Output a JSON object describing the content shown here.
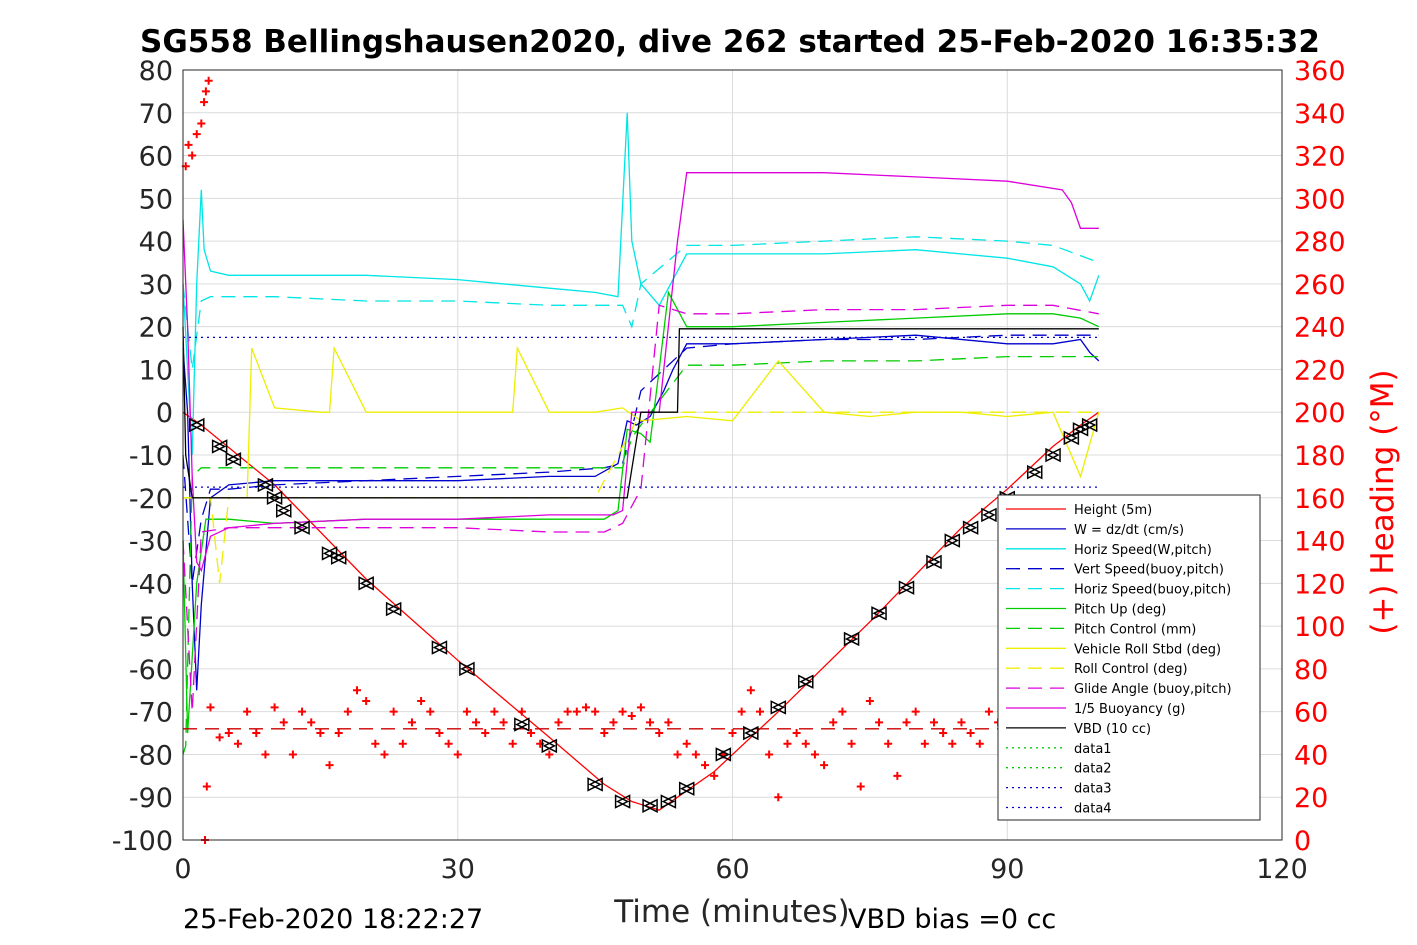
{
  "chart_data": {
    "type": "line",
    "title": "SG558 Bellingshausen2020, dive 262 started 25-Feb-2020 16:35:32",
    "xlabel": "Time (minutes)",
    "ylabel_right": "(+) Heading (°M)",
    "xlim": [
      0,
      120
    ],
    "ylim_left": [
      -100,
      80
    ],
    "ylim_right": [
      0,
      360
    ],
    "x_ticks": [
      "0",
      "30",
      "60",
      "90",
      "120"
    ],
    "y_ticks_left": [
      "80",
      "70",
      "60",
      "50",
      "40",
      "30",
      "20",
      "10",
      "0",
      "-10",
      "-20",
      "-30",
      "-40",
      "-50",
      "-60",
      "-70",
      "-80",
      "-90",
      "-100"
    ],
    "y_ticks_right": [
      "360",
      "340",
      "320",
      "300",
      "280",
      "260",
      "240",
      "220",
      "200",
      "180",
      "160",
      "140",
      "120",
      "100",
      "80",
      "60",
      "40",
      "20",
      "0"
    ],
    "grid": true,
    "legend_position": "lower-right",
    "footer_left": "25-Feb-2020 18:22:27",
    "footer_right": "VBD bias =0 cc",
    "legend": [
      {
        "label": "Height (5m)",
        "color": "#ff0000",
        "dash": "solid"
      },
      {
        "label": "W = dz/dt (cm/s)",
        "color": "#0000cc",
        "dash": "solid"
      },
      {
        "label": "Horiz Speed(W,pitch)",
        "color": "#00e5e5",
        "dash": "solid"
      },
      {
        "label": "Vert Speed(buoy,pitch)",
        "color": "#0000cc",
        "dash": "dashed"
      },
      {
        "label": "Horiz Speed(buoy,pitch)",
        "color": "#00e5e5",
        "dash": "dashed"
      },
      {
        "label": "Pitch Up (deg)",
        "color": "#00cc00",
        "dash": "solid"
      },
      {
        "label": "Pitch Control (mm)",
        "color": "#00cc00",
        "dash": "dashed"
      },
      {
        "label": "Vehicle Roll Stbd (deg)",
        "color": "#eeee00",
        "dash": "solid"
      },
      {
        "label": "Roll Control (deg)",
        "color": "#eeee00",
        "dash": "dashed"
      },
      {
        "label": "Glide Angle (buoy,pitch)",
        "color": "#dd00dd",
        "dash": "dashed"
      },
      {
        "label": "1/5 Buoyancy (g)",
        "color": "#dd00dd",
        "dash": "solid"
      },
      {
        "label": "VBD (10 cc)",
        "color": "#000000",
        "dash": "solid"
      },
      {
        "label": "data1",
        "color": "#00cc00",
        "dash": "dotted"
      },
      {
        "label": "data2",
        "color": "#00cc00",
        "dash": "dotted"
      },
      {
        "label": "data3",
        "color": "#0000cc",
        "dash": "dotted"
      },
      {
        "label": "data4",
        "color": "#0000cc",
        "dash": "dotted"
      }
    ],
    "series": [
      {
        "name": "Height (5m)",
        "color": "#ff0000",
        "x": [
          0,
          2,
          10,
          20,
          30,
          40,
          46,
          49,
          52,
          54,
          58,
          65,
          75,
          85,
          90,
          95,
          98,
          100
        ],
        "y": [
          0,
          -3,
          -17,
          -39,
          -58,
          -76,
          -87,
          -91,
          -93,
          -90,
          -84,
          -70,
          -49,
          -27,
          -18,
          -8,
          -3,
          0
        ]
      },
      {
        "name": "W = dz/dt (cm/s)",
        "color": "#0000cc",
        "x": [
          0,
          0.5,
          1.0,
          1.5,
          2.0,
          3,
          5,
          10,
          20,
          30,
          40,
          45,
          47.5,
          48.5,
          49.5,
          51,
          52.5,
          53.5,
          55,
          60,
          70,
          80,
          90,
          95,
          98,
          99,
          100
        ],
        "y": [
          15,
          0,
          -40,
          -65,
          -45,
          -20,
          -17,
          -16,
          -16,
          -16,
          -15,
          -15,
          -12,
          -2,
          -3,
          -1,
          5,
          10,
          16,
          16,
          17,
          18,
          16,
          16,
          17,
          14,
          12
        ]
      },
      {
        "name": "Horiz Speed(W,pitch)",
        "color": "#00e5e5",
        "x": [
          0,
          1.0,
          1.5,
          2.0,
          2.3,
          3,
          5,
          10,
          20,
          30,
          40,
          45,
          47.5,
          48.5,
          49.0,
          50,
          52,
          55,
          60,
          70,
          80,
          90,
          95,
          98,
          99,
          100
        ],
        "y": [
          30,
          -10,
          30,
          52,
          38,
          33,
          32,
          32,
          32,
          31,
          29,
          28,
          27,
          70,
          40,
          30,
          25,
          37,
          37,
          37,
          38,
          36,
          34,
          30,
          26,
          32
        ]
      },
      {
        "name": "Vert Speed(buoy,pitch)",
        "color": "#0000cc",
        "dash": "dashed",
        "x": [
          0,
          1,
          2,
          3,
          5,
          10,
          20,
          30,
          40,
          46,
          48,
          49,
          50,
          55,
          60,
          70,
          80,
          90,
          95,
          100
        ],
        "y": [
          -10,
          -40,
          -25,
          -18,
          -18,
          -17,
          -16,
          -15,
          -14,
          -13,
          -12,
          -4,
          5,
          15,
          16,
          17,
          17,
          18,
          18,
          18
        ]
      },
      {
        "name": "Horiz Speed(buoy,pitch)",
        "color": "#00e5e5",
        "dash": "dashed",
        "x": [
          0,
          1,
          2,
          3,
          10,
          20,
          30,
          40,
          46,
          48,
          49,
          50,
          55,
          60,
          70,
          80,
          90,
          95,
          100
        ],
        "y": [
          30,
          10,
          26,
          27,
          27,
          26,
          26,
          25,
          25,
          25,
          20,
          30,
          39,
          39,
          40,
          41,
          40,
          39,
          35
        ]
      },
      {
        "name": "Pitch Up (deg)",
        "color": "#00cc00",
        "x": [
          0,
          0.5,
          1.5,
          2.5,
          5,
          10,
          20,
          30,
          40,
          46,
          47.5,
          48.5,
          50,
          51,
          52,
          53,
          55,
          60,
          70,
          80,
          90,
          95,
          98,
          100
        ],
        "y": [
          -30,
          -75,
          -40,
          -25,
          -25,
          -26,
          -25,
          -25,
          -25,
          -25,
          -23,
          -4,
          -5,
          -7,
          10,
          28,
          20,
          20,
          21,
          22,
          23,
          23,
          22,
          20
        ]
      },
      {
        "name": "Pitch Control (mm)",
        "color": "#00cc00",
        "dash": "dashed",
        "x": [
          0,
          0.3,
          1.0,
          2,
          5,
          10,
          20,
          30,
          40,
          46,
          48,
          49,
          50,
          55,
          60,
          70,
          80,
          90,
          95,
          100
        ],
        "y": [
          -80,
          -78,
          -15,
          -13,
          -13,
          -13,
          -13,
          -13,
          -13,
          -13,
          -13,
          -6,
          -3,
          11,
          11,
          12,
          12,
          13,
          13,
          13
        ]
      },
      {
        "name": "Vehicle Roll Stbd (deg)",
        "color": "#eeee00",
        "x": [
          0,
          5,
          7,
          7.5,
          10,
          15,
          16,
          16.5,
          20,
          25,
          30,
          35,
          36,
          36.5,
          40,
          45,
          48,
          50,
          55,
          60,
          65,
          70,
          75,
          80,
          85,
          90,
          95,
          98,
          100
        ],
        "y": [
          -20,
          -20,
          -20,
          15,
          1,
          0,
          0,
          15,
          0,
          0,
          0,
          0,
          0,
          15,
          0,
          0,
          1,
          -2,
          -1,
          -2,
          12,
          0,
          -1,
          0,
          0,
          -1,
          0,
          -15,
          0
        ]
      },
      {
        "name": "Roll Control (deg)",
        "color": "#eeee00",
        "dash": "dashed",
        "x": [
          0,
          3,
          4,
          5,
          10,
          15,
          20,
          25,
          30,
          35,
          40,
          45,
          50,
          55,
          60,
          65,
          70,
          75,
          80,
          85,
          90,
          95,
          100
        ],
        "y": [
          -20,
          -20,
          -40,
          -20,
          -20,
          -20,
          -20,
          -20,
          -20,
          -20,
          -20,
          -20,
          0,
          0,
          0,
          0,
          0,
          0,
          0,
          0,
          0,
          0,
          0
        ]
      },
      {
        "name": "Glide Angle (buoy,pitch)",
        "color": "#dd00dd",
        "dash": "dashed",
        "x": [
          0,
          1,
          2,
          5,
          10,
          20,
          30,
          40,
          46,
          48,
          50,
          52,
          55,
          60,
          70,
          80,
          90,
          95,
          100
        ],
        "y": [
          -30,
          -70,
          -28,
          -27,
          -27,
          -27,
          -27,
          -28,
          -28,
          -26,
          -18,
          25,
          23,
          23,
          24,
          24,
          25,
          25,
          23
        ]
      },
      {
        "name": "1/5 Buoyancy (g)",
        "color": "#dd00dd",
        "x": [
          0,
          0.5,
          1.0,
          1.5,
          2.0,
          3,
          5,
          10,
          20,
          30,
          40,
          46,
          47,
          48,
          49,
          50,
          52,
          54,
          55,
          60,
          70,
          80,
          90,
          96,
          97,
          98,
          100
        ],
        "y": [
          45,
          20,
          -15,
          -35,
          -37,
          -29,
          -27,
          -26,
          -25,
          -25,
          -24,
          -24,
          -24,
          -23,
          0,
          0,
          0,
          40,
          56,
          56,
          56,
          55,
          54,
          52,
          49,
          43,
          43
        ]
      },
      {
        "name": "VBD (10 cc)",
        "color": "#000000",
        "x": [
          0,
          0.3,
          1.0,
          1.5,
          48,
          48.5,
          50,
          54,
          54.2,
          100
        ],
        "y": [
          20,
          -10,
          -20,
          -20,
          -20,
          -20,
          0,
          0,
          19.5,
          19.5
        ]
      },
      {
        "name": "data3",
        "color": "#0000cc",
        "dash": "dotted",
        "x": [
          0,
          100
        ],
        "y": [
          17.5,
          17.5
        ]
      },
      {
        "name": "data4",
        "color": "#0000cc",
        "dash": "dotted",
        "x": [
          0,
          100
        ],
        "y": [
          -17.5,
          -17.5
        ]
      },
      {
        "name": "(+) Heading",
        "axis": "right",
        "color": "#ff0000",
        "marker": "+",
        "x": [
          0.3,
          0.6,
          1.0,
          1.5,
          2.0,
          2.3,
          2.5,
          2.8,
          2.4,
          2.6,
          3,
          4,
          5,
          6,
          7,
          8,
          9,
          10,
          11,
          12,
          13,
          14,
          15,
          16,
          17,
          18,
          19,
          20,
          21,
          22,
          23,
          24,
          25,
          26,
          27,
          28,
          29,
          30,
          31,
          32,
          33,
          34,
          35,
          36,
          37,
          38,
          39,
          40,
          41,
          42,
          43,
          44,
          45,
          46,
          47,
          48,
          49,
          50,
          51,
          52,
          53,
          54,
          55,
          56,
          57,
          58,
          59,
          60,
          61,
          62,
          63,
          64,
          65,
          66,
          67,
          68,
          69,
          70,
          71,
          72,
          73,
          74,
          75,
          76,
          77,
          78,
          79,
          80,
          81,
          82,
          83,
          84,
          85,
          86,
          87,
          88,
          89,
          90,
          91,
          92,
          93,
          94,
          95,
          96,
          97,
          98,
          99
        ],
        "y": [
          315,
          325,
          320,
          330,
          335,
          345,
          350,
          355,
          0,
          25,
          62,
          48,
          50,
          45,
          60,
          50,
          40,
          62,
          55,
          40,
          60,
          55,
          50,
          35,
          50,
          60,
          70,
          65,
          45,
          40,
          60,
          45,
          55,
          65,
          60,
          50,
          45,
          40,
          60,
          55,
          50,
          60,
          55,
          45,
          60,
          50,
          45,
          40,
          55,
          60,
          60,
          62,
          60,
          50,
          55,
          60,
          58,
          62,
          55,
          50,
          55,
          40,
          45,
          40,
          35,
          30,
          40,
          50,
          60,
          70,
          60,
          40,
          20,
          45,
          50,
          45,
          40,
          35,
          55,
          60,
          45,
          25,
          65,
          55,
          45,
          30,
          55,
          60,
          45,
          55,
          50,
          45,
          55,
          50,
          45,
          60,
          55,
          60,
          55,
          60,
          55,
          60,
          60,
          55,
          60,
          62,
          60
        ]
      },
      {
        "name": "Heading reference",
        "axis": "right",
        "color": "#cc0000",
        "dash": "dashed",
        "x": [
          0,
          100
        ],
        "y": [
          52,
          52
        ]
      }
    ],
    "vertex_markers": {
      "name": "Height (5m) vertices",
      "color": "#000000",
      "x": [
        1.5,
        4,
        5.5,
        9,
        10,
        11,
        13,
        16,
        17,
        20,
        23,
        28,
        31,
        37,
        40,
        45,
        48,
        51,
        53,
        55,
        59,
        62,
        65,
        68,
        73,
        76,
        79,
        82,
        84,
        86,
        88,
        90,
        93,
        95,
        97,
        98,
        99
      ],
      "y": [
        -3,
        -8,
        -11,
        -17,
        -20,
        -23,
        -27,
        -33,
        -34,
        -40,
        -46,
        -55,
        -60,
        -73,
        -78,
        -87,
        -91,
        -92,
        -91,
        -88,
        -80,
        -75,
        -69,
        -63,
        -53,
        -47,
        -41,
        -35,
        -30,
        -27,
        -24,
        -20,
        -14,
        -10,
        -6,
        -4,
        -3
      ]
    }
  }
}
